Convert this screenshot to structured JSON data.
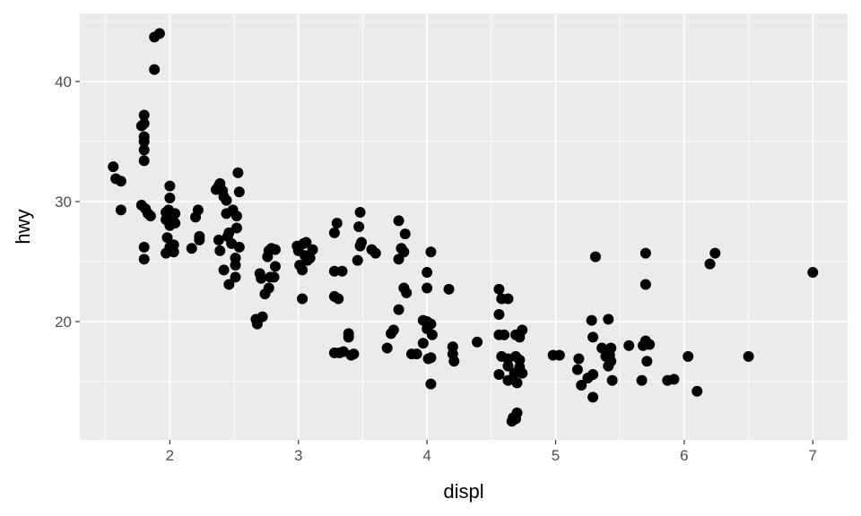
{
  "chart_data": {
    "type": "scatter",
    "title": "",
    "xlabel": "displ",
    "ylabel": "hwy",
    "xlim": [
      1.3,
      7.27
    ],
    "ylim": [
      10.15,
      45.67
    ],
    "x_ticks": [
      2,
      3,
      4,
      5,
      6,
      7
    ],
    "y_ticks": [
      20,
      30,
      40
    ],
    "x_tick_labels": [
      "2",
      "3",
      "4",
      "5",
      "6",
      "7"
    ],
    "y_tick_labels": [
      "20",
      "30",
      "40"
    ],
    "grid": true,
    "colors": {
      "panel": "#ebebeb",
      "grid": "#ffffff",
      "point": "#000000"
    },
    "points": [
      [
        1.56,
        32.9
      ],
      [
        1.58,
        31.9
      ],
      [
        1.62,
        31.7
      ],
      [
        1.62,
        29.3
      ],
      [
        1.92,
        44.0
      ],
      [
        1.88,
        43.7
      ],
      [
        1.88,
        41.0
      ],
      [
        1.8,
        37.2
      ],
      [
        1.8,
        36.5
      ],
      [
        1.78,
        36.3
      ],
      [
        1.8,
        35.4
      ],
      [
        1.8,
        35.0
      ],
      [
        1.8,
        34.3
      ],
      [
        1.8,
        33.4
      ],
      [
        1.78,
        29.7
      ],
      [
        1.81,
        29.4
      ],
      [
        1.83,
        29.0
      ],
      [
        1.85,
        28.8
      ],
      [
        1.8,
        26.2
      ],
      [
        1.8,
        25.2
      ],
      [
        2.0,
        31.3
      ],
      [
        2.0,
        30.3
      ],
      [
        1.97,
        29.1
      ],
      [
        1.99,
        29.3
      ],
      [
        2.03,
        28.9
      ],
      [
        2.04,
        29.0
      ],
      [
        1.97,
        28.5
      ],
      [
        2.0,
        28.0
      ],
      [
        2.04,
        28.2
      ],
      [
        1.98,
        27.0
      ],
      [
        2.03,
        26.4
      ],
      [
        2.0,
        26.2
      ],
      [
        1.97,
        25.7
      ],
      [
        2.03,
        25.8
      ],
      [
        2.17,
        26.1
      ],
      [
        2.2,
        28.7
      ],
      [
        2.22,
        29.3
      ],
      [
        2.23,
        27.1
      ],
      [
        2.23,
        26.8
      ],
      [
        2.38,
        31.3
      ],
      [
        2.39,
        31.5
      ],
      [
        2.36,
        31.0
      ],
      [
        2.41,
        30.9
      ],
      [
        2.42,
        30.4
      ],
      [
        2.44,
        30.1
      ],
      [
        2.38,
        26.8
      ],
      [
        2.39,
        25.9
      ],
      [
        2.42,
        24.3
      ],
      [
        2.46,
        23.1
      ],
      [
        2.44,
        29.0
      ],
      [
        2.45,
        27.1
      ],
      [
        2.46,
        27.4
      ],
      [
        2.48,
        26.5
      ],
      [
        2.49,
        29.3
      ],
      [
        2.51,
        25.3
      ],
      [
        2.51,
        24.7
      ],
      [
        2.53,
        32.4
      ],
      [
        2.54,
        30.8
      ],
      [
        2.52,
        28.8
      ],
      [
        2.52,
        27.8
      ],
      [
        2.54,
        26.2
      ],
      [
        2.51,
        23.7
      ],
      [
        2.67,
        20.2
      ],
      [
        2.68,
        19.8
      ],
      [
        2.72,
        20.4
      ],
      [
        2.7,
        24.0
      ],
      [
        2.71,
        23.6
      ],
      [
        2.74,
        22.3
      ],
      [
        2.77,
        22.8
      ],
      [
        2.76,
        25.4
      ],
      [
        2.77,
        25.9
      ],
      [
        2.79,
        26.1
      ],
      [
        2.82,
        26.0
      ],
      [
        2.78,
        23.7
      ],
      [
        2.81,
        23.7
      ],
      [
        2.82,
        24.6
      ],
      [
        2.99,
        26.3
      ],
      [
        3.0,
        25.9
      ],
      [
        3.04,
        26.5
      ],
      [
        3.06,
        26.6
      ],
      [
        3.01,
        24.7
      ],
      [
        3.03,
        24.3
      ],
      [
        3.07,
        25.1
      ],
      [
        3.11,
        26.0
      ],
      [
        3.09,
        25.3
      ],
      [
        3.03,
        21.9
      ],
      [
        3.05,
        25.5
      ],
      [
        3.28,
        27.4
      ],
      [
        3.3,
        28.2
      ],
      [
        3.28,
        24.2
      ],
      [
        3.34,
        24.2
      ],
      [
        3.28,
        22.1
      ],
      [
        3.31,
        21.9
      ],
      [
        3.28,
        17.4
      ],
      [
        3.32,
        17.4
      ],
      [
        3.35,
        17.5
      ],
      [
        3.39,
        19.0
      ],
      [
        3.39,
        18.7
      ],
      [
        3.41,
        17.2
      ],
      [
        3.43,
        17.3
      ],
      [
        3.48,
        29.1
      ],
      [
        3.47,
        27.9
      ],
      [
        3.49,
        26.6
      ],
      [
        3.48,
        26.3
      ],
      [
        3.46,
        25.1
      ],
      [
        3.57,
        26.0
      ],
      [
        3.6,
        25.7
      ],
      [
        3.69,
        17.8
      ],
      [
        3.72,
        19.0
      ],
      [
        3.74,
        19.3
      ],
      [
        3.78,
        28.4
      ],
      [
        3.83,
        27.3
      ],
      [
        3.8,
        26.1
      ],
      [
        3.78,
        25.2
      ],
      [
        3.82,
        25.8
      ],
      [
        3.82,
        22.8
      ],
      [
        3.84,
        22.4
      ],
      [
        3.78,
        21.0
      ],
      [
        3.88,
        17.3
      ],
      [
        3.92,
        17.3
      ],
      [
        3.97,
        20.1
      ],
      [
        4.0,
        20.0
      ],
      [
        4.03,
        19.8
      ],
      [
        4.0,
        19.4
      ],
      [
        4.04,
        18.9
      ],
      [
        3.97,
        18.2
      ],
      [
        4.0,
        22.8
      ],
      [
        4.0,
        24.1
      ],
      [
        4.03,
        25.8
      ],
      [
        4.03,
        17.0
      ],
      [
        4.01,
        16.9
      ],
      [
        4.03,
        14.8
      ],
      [
        4.17,
        22.7
      ],
      [
        4.2,
        17.9
      ],
      [
        4.2,
        17.3
      ],
      [
        4.21,
        16.7
      ],
      [
        4.39,
        18.3
      ],
      [
        4.56,
        22.7
      ],
      [
        4.58,
        21.9
      ],
      [
        4.63,
        21.9
      ],
      [
        4.56,
        20.6
      ],
      [
        4.56,
        18.9
      ],
      [
        4.6,
        18.9
      ],
      [
        4.58,
        17.1
      ],
      [
        4.56,
        15.6
      ],
      [
        4.63,
        16.9
      ],
      [
        4.63,
        16.3
      ],
      [
        4.63,
        15.1
      ],
      [
        4.69,
        18.9
      ],
      [
        4.72,
        18.7
      ],
      [
        4.74,
        19.3
      ],
      [
        4.69,
        17.1
      ],
      [
        4.72,
        16.8
      ],
      [
        4.72,
        16.2
      ],
      [
        4.68,
        15.7
      ],
      [
        4.74,
        15.7
      ],
      [
        4.7,
        14.9
      ],
      [
        4.67,
        12.0
      ],
      [
        4.69,
        11.9
      ],
      [
        4.7,
        12.4
      ],
      [
        4.66,
        11.7
      ],
      [
        4.98,
        17.2
      ],
      [
        5.03,
        17.2
      ],
      [
        5.17,
        16.0
      ],
      [
        5.18,
        16.9
      ],
      [
        5.2,
        14.7
      ],
      [
        5.25,
        15.3
      ],
      [
        5.29,
        15.6
      ],
      [
        5.29,
        13.7
      ],
      [
        5.29,
        18.7
      ],
      [
        5.28,
        20.1
      ],
      [
        5.31,
        25.4
      ],
      [
        5.36,
        17.8
      ],
      [
        5.41,
        20.2
      ],
      [
        5.43,
        17.8
      ],
      [
        5.39,
        17.1
      ],
      [
        5.42,
        17.2
      ],
      [
        5.41,
        16.3
      ],
      [
        5.43,
        16.7
      ],
      [
        5.44,
        15.1
      ],
      [
        5.57,
        18.0
      ],
      [
        5.67,
        15.1
      ],
      [
        5.68,
        18.0
      ],
      [
        5.7,
        18.4
      ],
      [
        5.73,
        18.1
      ],
      [
        5.7,
        25.7
      ],
      [
        5.7,
        23.1
      ],
      [
        5.71,
        16.7
      ],
      [
        5.87,
        15.1
      ],
      [
        5.92,
        15.2
      ],
      [
        6.03,
        17.1
      ],
      [
        6.1,
        14.2
      ],
      [
        6.2,
        24.8
      ],
      [
        6.24,
        25.7
      ],
      [
        6.5,
        17.1
      ],
      [
        7.0,
        24.1
      ]
    ]
  }
}
